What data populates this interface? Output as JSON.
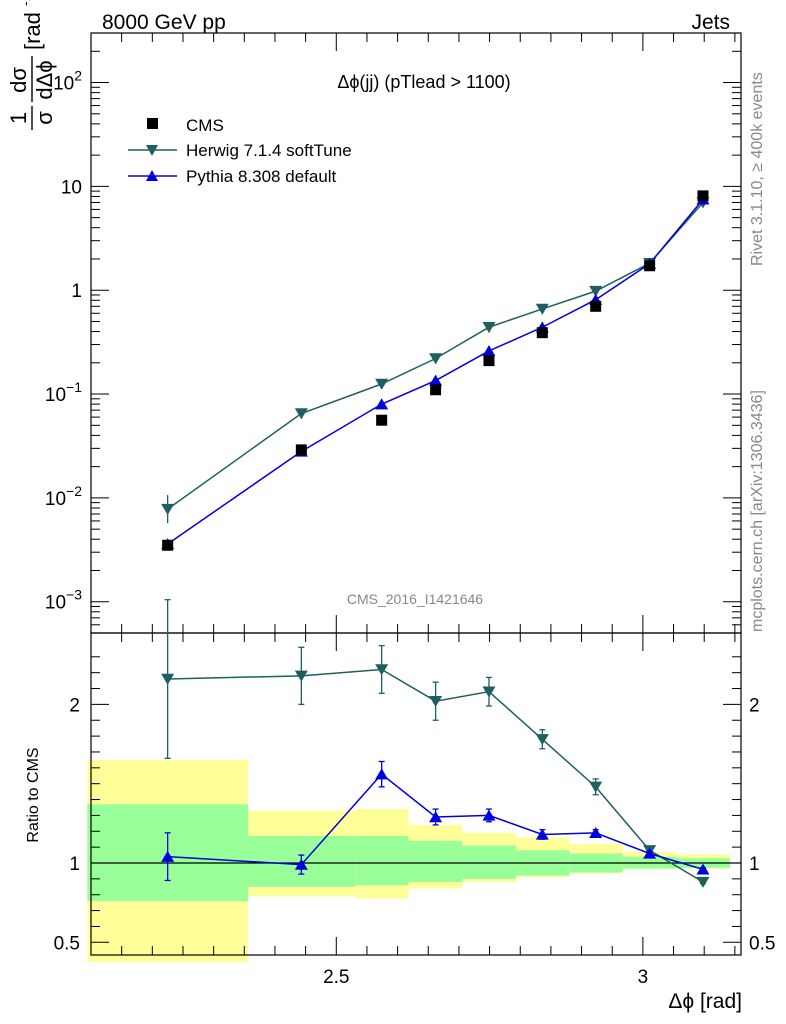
{
  "header": {
    "left": "8000 GeV pp",
    "right": "Jets"
  },
  "side_labels": {
    "rivet": "Rivet 3.1.10, ≥ 400k events",
    "mcplots": "mcplots.cern.ch [arXiv:1306.3436]"
  },
  "chart_data": {
    "type": "line",
    "title": "Δϕ(jj) (pTlead >  1100)",
    "watermark": "CMS_2016_I1421646",
    "xlabel": "Δϕ [rad]",
    "ylabel": "1 dσ / σ dΔϕ [rad⁻¹]",
    "ratio_ylabel": "Ratio to CMS",
    "yscale": "log",
    "xlim": [
      2.1,
      3.16
    ],
    "ylim": [
      0.0005,
      300
    ],
    "ratio_ylim": [
      0.42,
      2.45
    ],
    "x_ticks": [
      {
        "v": 2.5,
        "label": "2.5"
      },
      {
        "v": 3.0,
        "label": "3"
      }
    ],
    "y_ticks": [
      {
        "v": 0.001,
        "base": "10",
        "exp": "−3"
      },
      {
        "v": 0.01,
        "base": "10",
        "exp": "−2"
      },
      {
        "v": 0.1,
        "base": "10",
        "exp": "−1"
      },
      {
        "v": 1,
        "base": "1",
        "exp": ""
      },
      {
        "v": 10,
        "base": "10",
        "exp": ""
      },
      {
        "v": 100,
        "base": "10",
        "exp": "2"
      }
    ],
    "ratio_ticks": [
      {
        "v": 0.5,
        "label": "0.5"
      },
      {
        "v": 1,
        "label": "1"
      },
      {
        "v": 2,
        "label": "2"
      }
    ],
    "legend_position": "top-left",
    "bins": [
      {
        "lo": 2.094,
        "hi": 2.356
      },
      {
        "lo": 2.356,
        "hi": 2.531
      },
      {
        "lo": 2.531,
        "hi": 2.618
      },
      {
        "lo": 2.618,
        "hi": 2.705
      },
      {
        "lo": 2.705,
        "hi": 2.793
      },
      {
        "lo": 2.793,
        "hi": 2.88
      },
      {
        "lo": 2.88,
        "hi": 2.967
      },
      {
        "lo": 2.967,
        "hi": 3.054
      },
      {
        "lo": 3.054,
        "hi": 3.142
      }
    ],
    "data": {
      "name": "CMS",
      "x": [
        2.225,
        2.443,
        2.574,
        2.662,
        2.749,
        2.836,
        2.923,
        3.011,
        3.098
      ],
      "y": [
        0.0035,
        0.029,
        0.056,
        0.11,
        0.21,
        0.39,
        0.7,
        1.72,
        8.1
      ],
      "band_inner": [
        [
          0.76,
          1.37
        ],
        [
          0.85,
          1.17
        ],
        [
          0.86,
          1.17
        ],
        [
          0.88,
          1.14
        ],
        [
          0.9,
          1.11
        ],
        [
          0.92,
          1.08
        ],
        [
          0.94,
          1.06
        ],
        [
          0.965,
          1.04
        ],
        [
          0.97,
          1.03
        ]
      ],
      "band_outer": [
        [
          0.375,
          1.65
        ],
        [
          0.79,
          1.33
        ],
        [
          0.775,
          1.34
        ],
        [
          0.84,
          1.24
        ],
        [
          0.88,
          1.19
        ],
        [
          0.91,
          1.16
        ],
        [
          0.935,
          1.12
        ],
        [
          0.96,
          1.07
        ],
        [
          0.965,
          1.055
        ]
      ]
    },
    "series": [
      {
        "name": "Herwig 7.1.4 softTune",
        "color": "#1e5f5f",
        "marker": "triangle-down",
        "y": [
          0.0078,
          0.065,
          0.125,
          0.22,
          0.44,
          0.66,
          0.98,
          1.82,
          7.0
        ],
        "ratio": [
          2.16,
          2.18,
          2.22,
          2.02,
          2.08,
          1.78,
          1.48,
          1.08,
          0.88
        ],
        "ratio_err": [
          0.5,
          0.18,
          0.15,
          0.12,
          0.09,
          0.06,
          0.05,
          0.02,
          0.01
        ]
      },
      {
        "name": "Pythia 8.308 default",
        "color": "#0000dd",
        "marker": "triangle-up",
        "y": [
          0.0036,
          0.028,
          0.08,
          0.135,
          0.26,
          0.44,
          0.81,
          1.8,
          7.5
        ],
        "ratio": [
          1.04,
          0.99,
          1.56,
          1.29,
          1.3,
          1.18,
          1.19,
          1.06,
          0.96
        ],
        "ratio_err": [
          0.15,
          0.06,
          0.08,
          0.05,
          0.04,
          0.03,
          0.02,
          0.015,
          0.01
        ]
      }
    ]
  }
}
